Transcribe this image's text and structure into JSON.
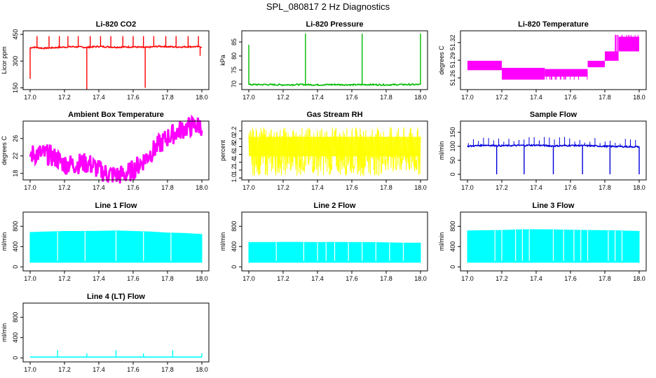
{
  "page": {
    "title": "SPL_080817  2 Hz Diagnostics"
  },
  "chart_data": [
    {
      "type": "line",
      "title": "Li-820 CO2",
      "ylabel": "Licor ppm",
      "color": "#ff0000",
      "xlim": [
        17.0,
        18.0
      ],
      "ylim": [
        140,
        470
      ],
      "xticks": [
        "17.0",
        "17.2",
        "17.4",
        "17.6",
        "17.8",
        "18.0"
      ],
      "yticks": [
        "150",
        "300",
        "450"
      ],
      "ytick_values": [
        150,
        300,
        450
      ],
      "series": [
        {
          "x": [
            17.0,
            17.02,
            17.08,
            17.15,
            17.25,
            17.33,
            17.4,
            17.5,
            17.6,
            17.67,
            17.75,
            17.85,
            17.95,
            18.0
          ],
          "y": [
            375,
            378,
            372,
            376,
            381,
            377,
            382,
            378,
            380,
            376,
            383,
            379,
            381,
            380
          ],
          "spikes_up": [
            17.04,
            17.11,
            17.17,
            17.22,
            17.28,
            17.35,
            17.41,
            17.47,
            17.54,
            17.6,
            17.66,
            17.72,
            17.79,
            17.85,
            17.92,
            17.98
          ],
          "spike_up_y": 440,
          "spikes_down": [
            [
              17.0,
              200
            ],
            [
              17.33,
              140
            ],
            [
              17.67,
              150
            ],
            [
              17.99,
              330
            ]
          ]
        }
      ]
    },
    {
      "type": "line",
      "title": "Li-820 Pressure",
      "ylabel": "kPa",
      "color": "#00bb00",
      "xlim": [
        17.0,
        18.0
      ],
      "ylim": [
        68,
        89
      ],
      "xticks": [
        "17.0",
        "17.2",
        "17.4",
        "17.6",
        "17.8",
        "18.0"
      ],
      "yticks": [
        "70",
        "75",
        "80",
        "85"
      ],
      "ytick_values": [
        70,
        75,
        80,
        85
      ],
      "series": [
        {
          "x": [
            17.0,
            17.1,
            17.2,
            17.3,
            17.4,
            17.5,
            17.6,
            17.7,
            17.8,
            17.9,
            18.0
          ],
          "y": [
            69.8,
            69.8,
            69.7,
            69.8,
            69.7,
            69.8,
            69.7,
            69.8,
            69.7,
            69.8,
            69.8
          ],
          "spikes_up": [
            [
              17.0,
              84
            ],
            [
              17.33,
              88
            ],
            [
              17.66,
              88
            ],
            [
              18.0,
              88
            ]
          ]
        }
      ]
    },
    {
      "type": "line",
      "title": "Li-820 Temperature",
      "ylabel": "degrees C",
      "color": "#ff00ff",
      "xlim": [
        17.0,
        18.0
      ],
      "ylim": [
        51.24,
        51.34
      ],
      "xticks": [
        "17.0",
        "17.2",
        "17.4",
        "17.6",
        "17.8",
        "18.0"
      ],
      "yticks": [
        "51.26",
        "51.29",
        "51.32"
      ],
      "ytick_values": [
        51.26,
        51.29,
        51.32
      ],
      "bands": [
        [
          17.0,
          17.2,
          51.273,
          51.289
        ],
        [
          17.2,
          17.45,
          51.257,
          51.277
        ],
        [
          17.45,
          17.7,
          51.262,
          51.275
        ],
        [
          17.7,
          17.8,
          51.278,
          51.289
        ],
        [
          17.8,
          17.88,
          51.289,
          51.305
        ],
        [
          17.88,
          18.0,
          51.305,
          51.33
        ]
      ]
    },
    {
      "type": "line",
      "title": "Ambient Box Temperature",
      "ylabel": "degrees C",
      "color": "#ff00ff",
      "xlim": [
        17.0,
        18.0
      ],
      "ylim": [
        16.5,
        30.0
      ],
      "xticks": [
        "17.0",
        "17.2",
        "17.4",
        "17.6",
        "17.8",
        "18.0"
      ],
      "yticks": [
        "18",
        "22",
        "26"
      ],
      "ytick_values": [
        18,
        22,
        26
      ],
      "series": [
        {
          "x": [
            17.0,
            17.05,
            17.1,
            17.15,
            17.2,
            17.25,
            17.3,
            17.35,
            17.4,
            17.45,
            17.5,
            17.55,
            17.6,
            17.65,
            17.7,
            17.75,
            17.8,
            17.85,
            17.9,
            17.95,
            18.0
          ],
          "y": [
            22.3,
            22.6,
            22.3,
            21.5,
            20.2,
            20.1,
            20.4,
            20.1,
            18.8,
            17.9,
            17.6,
            17.7,
            18.8,
            20.6,
            22.6,
            24.5,
            26.2,
            27.5,
            28.4,
            28.9,
            29.0
          ]
        }
      ]
    },
    {
      "type": "line",
      "title": "Gas Stream RH",
      "ylabel": "percent",
      "color": "#ffff00",
      "xlim": [
        17.0,
        18.0
      ],
      "ylim": [
        0.95,
        2.45
      ],
      "xticks": [
        "17.0",
        "17.2",
        "17.4",
        "17.6",
        "17.8",
        "18.0"
      ],
      "yticks": [
        "1.0",
        "1.2",
        "1.4",
        "1.6",
        "1.8",
        "2.0",
        "2.2"
      ],
      "ytick_values": [
        1.0,
        1.2,
        1.4,
        1.6,
        1.8,
        2.0,
        2.2
      ],
      "band": [
        1.05,
        2.3
      ]
    },
    {
      "type": "line",
      "title": "Sample Flow",
      "ylabel": "ml/min",
      "color": "#0000dd",
      "xlim": [
        17.0,
        18.0
      ],
      "ylim": [
        -20,
        190
      ],
      "xticks": [
        "17.0",
        "17.2",
        "17.4",
        "17.6",
        "17.8",
        "18.0"
      ],
      "yticks": [
        "0",
        "50",
        "100",
        "150"
      ],
      "ytick_values": [
        0,
        50,
        100,
        150
      ],
      "series": [
        {
          "x": [
            17.0,
            17.1,
            17.2,
            17.3,
            17.4,
            17.5,
            17.6,
            17.7,
            17.8,
            17.9,
            18.0
          ],
          "y": [
            100,
            104,
            102,
            103,
            104,
            101,
            103,
            102,
            100,
            99,
            98
          ],
          "spikes_up_y": 130,
          "spikes_down": [
            [
              17.17,
              0
            ],
            [
              17.33,
              0
            ],
            [
              17.5,
              0
            ],
            [
              17.67,
              0
            ],
            [
              17.83,
              0
            ],
            [
              18.0,
              0
            ]
          ]
        }
      ]
    },
    {
      "type": "line",
      "title": "Line 1 Flow",
      "ylabel": "ml/min",
      "color": "#00ffff",
      "xlim": [
        17.0,
        18.0
      ],
      "ylim": [
        -80,
        1080
      ],
      "xticks": [
        "17.0",
        "17.2",
        "17.4",
        "17.6",
        "17.8",
        "18.0"
      ],
      "yticks": [
        "0",
        "400",
        "800"
      ],
      "ytick_values": [
        0,
        400,
        800
      ],
      "band_x": [
        17.0,
        17.1,
        17.2,
        17.3,
        17.4,
        17.5,
        17.6,
        17.7,
        17.8,
        17.9,
        18.0
      ],
      "band_top": [
        680,
        690,
        700,
        700,
        705,
        710,
        700,
        690,
        670,
        660,
        640
      ],
      "band_bottom": 90,
      "gaps": [
        17.16,
        17.32,
        17.5,
        17.66,
        17.82
      ]
    },
    {
      "type": "line",
      "title": "Line 2 Flow",
      "ylabel": "ml/min",
      "color": "#00ffff",
      "xlim": [
        17.0,
        18.0
      ],
      "ylim": [
        -80,
        1080
      ],
      "xticks": [
        "17.0",
        "17.2",
        "17.4",
        "17.6",
        "17.8",
        "18.0"
      ],
      "yticks": [
        "0",
        "400",
        "800"
      ],
      "ytick_values": [
        0,
        400,
        800
      ],
      "band_x": [
        17.0,
        17.1,
        17.2,
        17.3,
        17.4,
        17.5,
        17.6,
        17.7,
        17.8,
        17.9,
        18.0
      ],
      "band_top": [
        480,
        480,
        485,
        485,
        480,
        485,
        480,
        480,
        475,
        470,
        470
      ],
      "band_bottom": 90,
      "gaps": [
        17.16,
        17.32,
        17.4,
        17.45,
        17.5,
        17.58,
        17.66,
        17.74,
        17.82,
        17.9
      ]
    },
    {
      "type": "line",
      "title": "Line 3 Flow",
      "ylabel": "ml/min",
      "color": "#00ffff",
      "xlim": [
        17.0,
        18.0
      ],
      "ylim": [
        -80,
        1080
      ],
      "xticks": [
        "17.0",
        "17.2",
        "17.4",
        "17.6",
        "17.8",
        "18.0"
      ],
      "yticks": [
        "0",
        "400",
        "800"
      ],
      "ytick_values": [
        0,
        400,
        800
      ],
      "band_x": [
        17.0,
        17.1,
        17.2,
        17.3,
        17.4,
        17.5,
        17.6,
        17.7,
        17.8,
        17.9,
        18.0
      ],
      "band_top": [
        710,
        715,
        720,
        730,
        735,
        730,
        725,
        720,
        715,
        710,
        700
      ],
      "band_bottom": 90,
      "gaps": [
        17.16,
        17.2,
        17.28,
        17.32,
        17.36,
        17.5,
        17.56,
        17.62,
        17.66,
        17.7,
        17.82,
        17.86,
        17.9
      ]
    },
    {
      "type": "line",
      "title": "Line 4 (LT) Flow",
      "ylabel": "ml/min",
      "color": "#00ffff",
      "xlim": [
        17.0,
        18.0
      ],
      "ylim": [
        -80,
        1080
      ],
      "xticks": [
        "17.0",
        "17.2",
        "17.4",
        "17.6",
        "17.8",
        "18.0"
      ],
      "yticks": [
        "0",
        "400",
        "800"
      ],
      "ytick_values": [
        0,
        400,
        800
      ],
      "series": [
        {
          "x": [
            17.0,
            18.0
          ],
          "y": [
            15,
            15
          ],
          "spikes_up": [
            [
              17.16,
              150
            ],
            [
              17.33,
              90
            ],
            [
              17.5,
              150
            ],
            [
              17.66,
              90
            ],
            [
              17.83,
              150
            ],
            [
              18.0,
              90
            ]
          ]
        }
      ]
    }
  ]
}
